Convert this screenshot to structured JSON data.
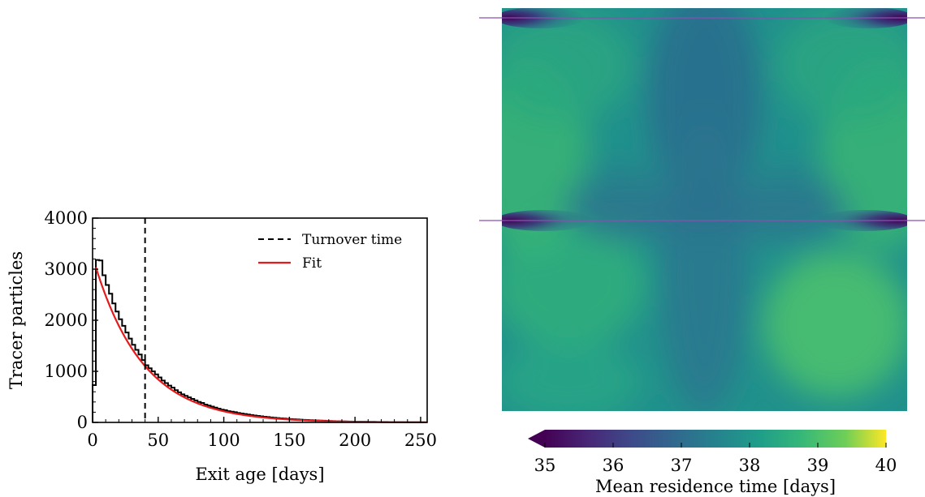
{
  "chart_data": [
    {
      "type": "histogram",
      "xlabel": "Exit age [days]",
      "ylabel": "Tracer particles",
      "xlim": [
        0,
        255
      ],
      "ylim": [
        0,
        4000
      ],
      "xticks": [
        0,
        50,
        100,
        150,
        200,
        250
      ],
      "yticks": [
        0,
        1000,
        2000,
        3000,
        4000
      ],
      "legend_position": "top-right",
      "bin_width": 2.5,
      "bin_edges_start": 0,
      "counts": [
        730,
        3180,
        3170,
        2880,
        2690,
        2520,
        2330,
        2170,
        2020,
        1890,
        1760,
        1640,
        1520,
        1420,
        1330,
        1220,
        1120,
        1060,
        1000,
        940,
        880,
        820,
        770,
        720,
        680,
        630,
        590,
        550,
        520,
        490,
        460,
        430,
        400,
        380,
        350,
        330,
        310,
        290,
        270,
        250,
        240,
        220,
        210,
        200,
        185,
        175,
        165,
        155,
        145,
        135,
        128,
        120,
        112,
        105,
        98,
        92,
        86,
        80,
        75,
        70,
        66,
        62,
        58,
        54,
        50,
        47,
        44,
        41,
        38,
        35,
        33,
        30,
        28,
        26,
        24,
        22,
        20,
        18,
        16,
        15,
        14,
        13,
        12,
        11,
        10,
        9,
        8,
        7,
        6,
        5,
        5,
        4,
        4,
        3,
        3,
        3,
        2,
        2,
        2,
        2,
        1
      ],
      "turnover_time": {
        "label": "Turnover time",
        "x": 40,
        "color": "#000000",
        "style": "dashed"
      },
      "fit": {
        "label": "Fit",
        "color": "#e41a1c",
        "amplitude": 3250,
        "decay_days": 37,
        "x_start": 2.5,
        "x_end": 255
      }
    },
    {
      "type": "heatmap",
      "colormap": "viridis",
      "colorbar": {
        "label": "Mean residence time [days]",
        "vmin": 35,
        "vmax": 40,
        "ticks": [
          35,
          36,
          37,
          38,
          39,
          40
        ],
        "extend": "min",
        "position": "bottom"
      },
      "value_range_shown": [
        35,
        40
      ],
      "description_marks": {
        "inlet_rows": 2
      }
    }
  ]
}
